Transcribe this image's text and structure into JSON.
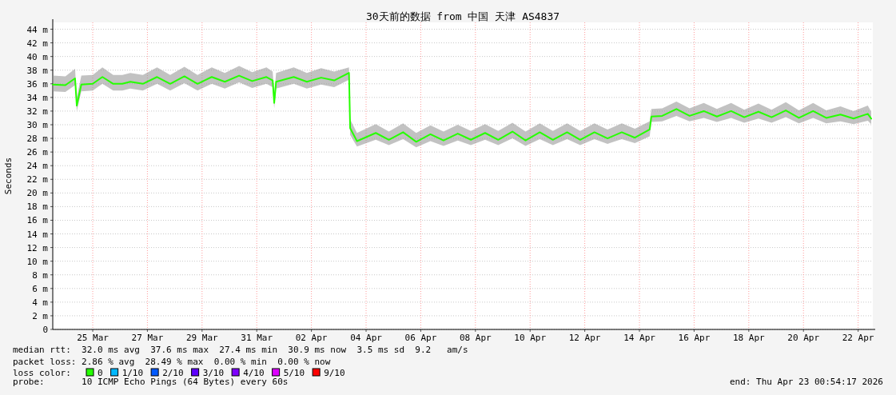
{
  "chart_data": {
    "type": "line",
    "title": "30天前的数据 from 中国 天津 AS4837",
    "ylabel": "Seconds",
    "x": [
      "2026-03-24T01:00",
      "2026-03-24T12:00",
      "2026-03-24T20:30",
      "2026-03-24T22:00",
      "2026-03-25T02:00",
      "2026-03-25T12:00",
      "2026-03-25T20:30",
      "2026-03-26T06:00",
      "2026-03-26T14:00",
      "2026-03-26T21:00",
      "2026-03-27T08:00",
      "2026-03-27T20:30",
      "2026-03-28T08:00",
      "2026-03-28T20:30",
      "2026-03-29T08:00",
      "2026-03-29T20:30",
      "2026-03-30T08:00",
      "2026-03-30T20:30",
      "2026-03-31T08:00",
      "2026-03-31T20:30",
      "2026-04-01T02:00",
      "2026-04-01T03:20",
      "2026-04-01T05:00",
      "2026-04-01T20:30",
      "2026-04-02T08:00",
      "2026-04-02T20:30",
      "2026-04-03T08:00",
      "2026-04-03T21:00",
      "2026-04-03T22:00",
      "2026-04-04T04:00",
      "2026-04-04T20:30",
      "2026-04-05T08:00",
      "2026-04-05T20:30",
      "2026-04-06T08:00",
      "2026-04-06T20:30",
      "2026-04-07T08:00",
      "2026-04-07T20:30",
      "2026-04-08T08:00",
      "2026-04-08T20:30",
      "2026-04-09T08:00",
      "2026-04-09T20:30",
      "2026-04-10T08:00",
      "2026-04-10T20:30",
      "2026-04-11T08:00",
      "2026-04-11T20:30",
      "2026-04-12T08:00",
      "2026-04-12T20:30",
      "2026-04-13T08:00",
      "2026-04-13T20:30",
      "2026-04-14T08:00",
      "2026-04-14T21:00",
      "2026-04-14T22:30",
      "2026-04-15T08:00",
      "2026-04-15T20:30",
      "2026-04-16T08:00",
      "2026-04-16T20:30",
      "2026-04-17T08:00",
      "2026-04-17T20:30",
      "2026-04-18T08:00",
      "2026-04-18T20:30",
      "2026-04-19T08:00",
      "2026-04-19T20:30",
      "2026-04-20T08:00",
      "2026-04-20T20:30",
      "2026-04-21T08:00",
      "2026-04-21T20:30",
      "2026-04-22T08:00",
      "2026-04-22T20:30",
      "2026-04-22T23:30"
    ],
    "series": [
      {
        "name": "0",
        "color": "#26ff00",
        "values": [
          35.9,
          35.8,
          36.8,
          32.8,
          35.9,
          36.0,
          37.0,
          36.0,
          36.0,
          36.3,
          36.0,
          37.0,
          36.0,
          37.1,
          36.0,
          37.0,
          36.3,
          37.2,
          36.4,
          37.0,
          36.5,
          33.2,
          36.3,
          37.0,
          36.3,
          36.9,
          36.5,
          37.6,
          29.5,
          27.6,
          28.8,
          27.8,
          28.9,
          27.5,
          28.6,
          27.7,
          28.7,
          27.8,
          28.8,
          27.8,
          29.0,
          27.7,
          28.9,
          27.8,
          28.9,
          27.8,
          28.9,
          28.0,
          28.9,
          28.1,
          29.3,
          31.2,
          31.3,
          32.3,
          31.3,
          32.0,
          31.2,
          32.0,
          31.1,
          31.9,
          31.1,
          32.1,
          31.0,
          32.0,
          31.0,
          31.5,
          30.9,
          31.6,
          30.9
        ],
        "lower": [
          34.9,
          34.8,
          35.8,
          32.0,
          34.9,
          35.0,
          36.0,
          35.0,
          35.0,
          35.3,
          35.0,
          36.0,
          35.0,
          36.1,
          35.0,
          36.0,
          35.3,
          36.2,
          35.4,
          36.0,
          35.5,
          32.4,
          35.3,
          36.0,
          35.3,
          35.9,
          35.5,
          36.6,
          28.5,
          26.8,
          27.8,
          27.0,
          27.9,
          26.7,
          27.6,
          26.9,
          27.7,
          27.0,
          27.8,
          27.0,
          28.0,
          26.9,
          27.9,
          27.0,
          27.9,
          27.0,
          27.9,
          27.2,
          27.9,
          27.3,
          28.3,
          30.4,
          30.5,
          31.3,
          30.5,
          31.0,
          30.4,
          31.0,
          30.3,
          30.9,
          30.3,
          31.1,
          30.2,
          31.0,
          30.2,
          30.5,
          30.1,
          30.6,
          30.1
        ],
        "upper": [
          37.2,
          37.1,
          38.2,
          34.0,
          37.2,
          37.3,
          38.4,
          37.3,
          37.3,
          37.6,
          37.3,
          38.4,
          37.3,
          38.5,
          37.3,
          38.4,
          37.6,
          38.6,
          37.7,
          38.4,
          37.8,
          34.4,
          37.6,
          38.4,
          37.6,
          38.3,
          37.8,
          38.4,
          30.8,
          28.8,
          30.1,
          29.0,
          30.2,
          28.8,
          29.9,
          29.0,
          30.0,
          29.1,
          30.1,
          29.1,
          30.3,
          29.0,
          30.2,
          29.1,
          30.2,
          29.1,
          30.2,
          29.3,
          30.2,
          29.4,
          30.5,
          32.3,
          32.4,
          33.4,
          32.4,
          33.2,
          32.3,
          33.2,
          32.2,
          33.1,
          32.2,
          33.3,
          32.1,
          33.2,
          32.1,
          32.7,
          32.0,
          32.8,
          31.9
        ]
      },
      {
        "name": "1/10",
        "color": "#00b8ff",
        "values": [
          null,
          null,
          null,
          null,
          null,
          null,
          null,
          null,
          null,
          null,
          null,
          null,
          null,
          null,
          null,
          null,
          null,
          null,
          null,
          null,
          null,
          null,
          null,
          null,
          null,
          null,
          null,
          null,
          null,
          null,
          null,
          null,
          null,
          null,
          null,
          null,
          null,
          null,
          null,
          null,
          null,
          null,
          null,
          null,
          null,
          null,
          null,
          null,
          null,
          null,
          null,
          null,
          null,
          null,
          null,
          null,
          null,
          null,
          null,
          null,
          null,
          null,
          null,
          null,
          null,
          null,
          null,
          null,
          null
        ]
      },
      {
        "name": "2/10",
        "color": "#0059ff",
        "values": [
          null,
          null,
          null,
          null,
          null,
          null,
          null,
          null,
          null,
          null,
          null,
          null,
          null,
          null,
          null,
          null,
          null,
          null,
          null,
          null,
          null,
          null,
          null,
          null,
          null,
          null,
          null,
          null,
          null,
          null,
          null,
          null,
          null,
          null,
          null,
          null,
          null,
          null,
          null,
          null,
          null,
          null,
          null,
          null,
          null,
          null,
          null,
          null,
          null,
          null,
          null,
          null,
          null,
          null,
          null,
          null,
          null,
          null,
          null,
          null,
          null,
          null,
          null,
          null,
          null,
          null,
          null,
          null,
          null
        ]
      },
      {
        "name": "3/10",
        "color": "#5e00ff",
        "values": [
          null,
          null,
          null,
          null,
          null,
          null,
          null,
          null,
          null,
          null,
          null,
          null,
          null,
          null,
          null,
          null,
          null,
          null,
          null,
          null,
          null,
          null,
          null,
          null,
          null,
          null,
          null,
          null,
          null,
          null,
          null,
          null,
          null,
          null,
          null,
          null,
          null,
          null,
          null,
          null,
          null,
          null,
          null,
          null,
          null,
          null,
          null,
          null,
          null,
          null,
          null,
          null,
          null,
          null,
          null,
          null,
          null,
          null,
          null,
          null,
          null,
          null,
          null,
          null,
          null,
          null,
          null,
          null,
          null
        ]
      },
      {
        "name": "4/10",
        "color": "#7e00ff",
        "values": [
          null,
          null,
          null,
          null,
          null,
          null,
          null,
          null,
          null,
          null,
          null,
          null,
          null,
          null,
          null,
          null,
          null,
          null,
          null,
          null,
          null,
          null,
          null,
          null,
          null,
          null,
          null,
          null,
          null,
          null,
          null,
          null,
          null,
          null,
          null,
          null,
          null,
          null,
          null,
          null,
          null,
          null,
          null,
          null,
          null,
          null,
          null,
          null,
          null,
          null,
          null,
          null,
          null,
          null,
          null,
          null,
          null,
          null,
          null,
          null,
          null,
          null,
          null,
          null,
          null,
          null,
          null,
          null,
          null
        ]
      },
      {
        "name": "5/10",
        "color": "#dd00ff",
        "values": [
          null,
          null,
          null,
          null,
          null,
          null,
          null,
          null,
          null,
          null,
          null,
          null,
          null,
          null,
          null,
          null,
          null,
          null,
          null,
          null,
          null,
          null,
          null,
          null,
          null,
          null,
          null,
          null,
          null,
          null,
          null,
          null,
          null,
          null,
          null,
          null,
          null,
          null,
          null,
          null,
          null,
          null,
          null,
          null,
          null,
          null,
          null,
          null,
          null,
          null,
          null,
          null,
          null,
          null,
          null,
          null,
          null,
          null,
          null,
          null,
          null,
          null,
          null,
          null,
          null,
          null,
          null,
          null,
          null
        ]
      },
      {
        "name": "9/10",
        "color": "#ff0000",
        "values": [
          null,
          null,
          null,
          null,
          null,
          null,
          null,
          null,
          null,
          null,
          null,
          null,
          null,
          null,
          null,
          null,
          null,
          null,
          null,
          null,
          null,
          null,
          null,
          null,
          null,
          null,
          null,
          null,
          null,
          null,
          null,
          null,
          null,
          null,
          null,
          null,
          null,
          null,
          null,
          null,
          null,
          null,
          null,
          null,
          null,
          null,
          null,
          null,
          null,
          null,
          null,
          null,
          null,
          null,
          null,
          null,
          null,
          null,
          null,
          null,
          null,
          null,
          null,
          null,
          null,
          null,
          null,
          null,
          null
        ]
      }
    ],
    "xlim": [
      "2026-03-24T00:54",
      "2026-04-23T00:54"
    ],
    "xticks": [
      {
        "value": "2026-03-25T12:00",
        "label": "25 Mar"
      },
      {
        "value": "2026-03-27T12:00",
        "label": "27 Mar"
      },
      {
        "value": "2026-03-29T12:00",
        "label": "29 Mar"
      },
      {
        "value": "2026-03-31T12:00",
        "label": "31 Mar"
      },
      {
        "value": "2026-04-02T12:00",
        "label": "02 Apr"
      },
      {
        "value": "2026-04-04T12:00",
        "label": "04 Apr"
      },
      {
        "value": "2026-04-06T12:00",
        "label": "06 Apr"
      },
      {
        "value": "2026-04-08T12:00",
        "label": "08 Apr"
      },
      {
        "value": "2026-04-10T12:00",
        "label": "10 Apr"
      },
      {
        "value": "2026-04-12T12:00",
        "label": "12 Apr"
      },
      {
        "value": "2026-04-14T12:00",
        "label": "14 Apr"
      },
      {
        "value": "2026-04-16T12:00",
        "label": "16 Apr"
      },
      {
        "value": "2026-04-18T12:00",
        "label": "18 Apr"
      },
      {
        "value": "2026-04-20T12:00",
        "label": "20 Apr"
      },
      {
        "value": "2026-04-22T12:00",
        "label": "22 Apr"
      }
    ],
    "ylim": [
      0,
      45
    ],
    "yticks": [
      0,
      {
        "value": 2,
        "label": "2 m"
      },
      {
        "value": 4,
        "label": "4 m"
      },
      {
        "value": 6,
        "label": "6 m"
      },
      {
        "value": 8,
        "label": "8 m"
      },
      {
        "value": 10,
        "label": "10 m"
      },
      {
        "value": 12,
        "label": "12 m"
      },
      {
        "value": 14,
        "label": "14 m"
      },
      {
        "value": 16,
        "label": "16 m"
      },
      {
        "value": 18,
        "label": "18 m"
      },
      {
        "value": 20,
        "label": "20 m"
      },
      {
        "value": 22,
        "label": "22 m"
      },
      {
        "value": 24,
        "label": "24 m"
      },
      {
        "value": 26,
        "label": "26 m"
      },
      {
        "value": 28,
        "label": "28 m"
      },
      {
        "value": 30,
        "label": "30 m"
      },
      {
        "value": 32,
        "label": "32 m"
      },
      {
        "value": 34,
        "label": "34 m"
      },
      {
        "value": 36,
        "label": "36 m"
      },
      {
        "value": 38,
        "label": "38 m"
      },
      {
        "value": 40,
        "label": "40 m"
      },
      {
        "value": 42,
        "label": "42 m"
      },
      {
        "value": 44,
        "label": "44 m"
      }
    ],
    "grid": true,
    "legend": "bottom",
    "legend_title": "loss color:",
    "line_style": "solid",
    "annotations": [
      "median rtt:  32.0 ms avg  37.6 ms max  27.4 ms min  30.9 ms now  3.5 ms sd  9.2   am/s",
      "packet loss: 2.86 % avg  28.49 % max  0.00 % min  0.00 % now",
      "probe:       10 ICMP Echo Pings (64 Bytes) every 60s",
      "end: Thu Apr 23 00:54:17 2026"
    ]
  }
}
